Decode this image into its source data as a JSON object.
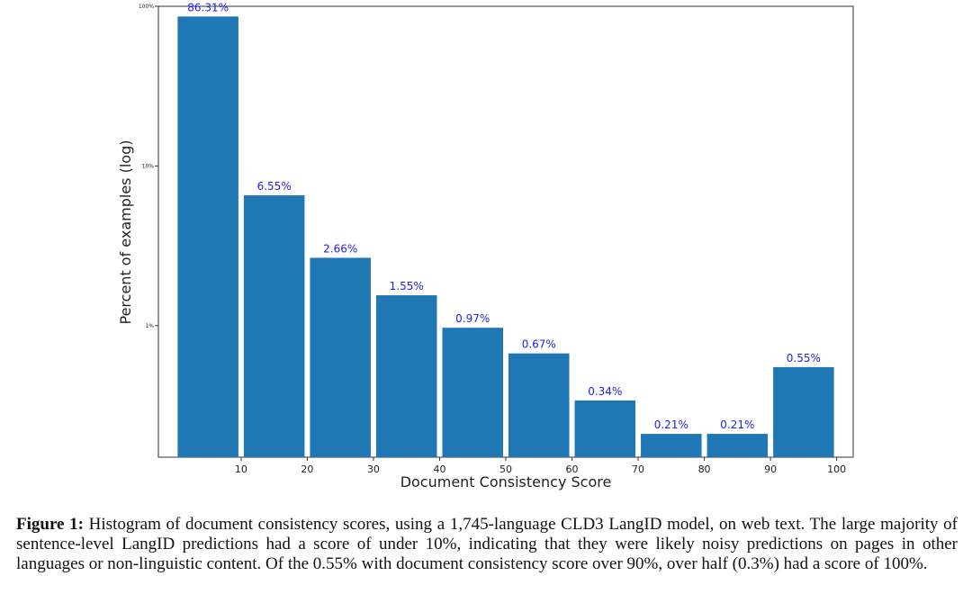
{
  "chart_data": {
    "type": "bar",
    "scale": "log",
    "categories": [
      "0-10",
      "10-20",
      "20-30",
      "30-40",
      "40-50",
      "50-60",
      "60-70",
      "70-80",
      "80-90",
      "90-100"
    ],
    "values": [
      86.31,
      6.55,
      2.66,
      1.55,
      0.97,
      0.67,
      0.34,
      0.21,
      0.21,
      0.55
    ],
    "data_labels": [
      "86.31%",
      "6.55%",
      "2.66%",
      "1.55%",
      "0.97%",
      "0.67%",
      "0.34%",
      "0.21%",
      "0.21%",
      "0.55%"
    ],
    "bin_edges": [
      0,
      10,
      20,
      30,
      40,
      50,
      60,
      70,
      80,
      90,
      100
    ],
    "xticks": [
      "10",
      "20",
      "30",
      "40",
      "50",
      "60",
      "70",
      "80",
      "90",
      "100"
    ],
    "yticks": [
      {
        "value": 100,
        "label": "100%"
      },
      {
        "value": 10,
        "label": "10%"
      },
      {
        "value": 1,
        "label": "1%"
      }
    ],
    "xlim": [
      -2.5,
      102.5
    ],
    "ylim": [
      0.15,
      100
    ],
    "xlabel": "Document Consistency Score",
    "ylabel": "Percent of examples (log)",
    "bar_color": "#1f77b4",
    "label_color": "#2020ee",
    "grid": false
  },
  "caption": {
    "label": "Figure 1:",
    "text": "Histogram of document consistency scores, using a 1,745-language CLD3 LangID model, on web text. The large majority of sentence-level LangID predictions had a score of under 10%, indicating that they were likely noisy predictions on pages in other languages or non-linguistic content. Of the 0.55% with document consistency score over 90%, over half (0.3%) had a score of 100%."
  }
}
